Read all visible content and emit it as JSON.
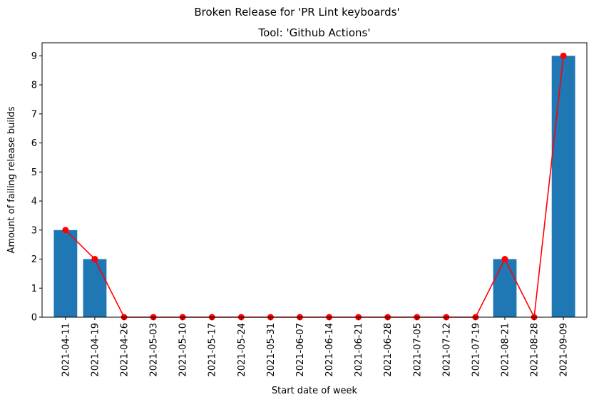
{
  "chart_data": {
    "type": "bar",
    "suptitle": "Broken Release for 'PR Lint keyboards'",
    "title": "Tool: 'Github Actions'",
    "xlabel": "Start date of week",
    "ylabel": "Amount of failing release builds",
    "categories": [
      "2021-04-11",
      "2021-04-19",
      "2021-04-26",
      "2021-05-03",
      "2021-05-10",
      "2021-05-17",
      "2021-05-24",
      "2021-05-31",
      "2021-06-07",
      "2021-06-14",
      "2021-06-21",
      "2021-06-28",
      "2021-07-05",
      "2021-07-12",
      "2021-07-19",
      "2021-08-21",
      "2021-08-28",
      "2021-09-09"
    ],
    "series": [
      {
        "type": "bar",
        "values": [
          3,
          2,
          0,
          0,
          0,
          0,
          0,
          0,
          0,
          0,
          0,
          0,
          0,
          0,
          0,
          2,
          0,
          9
        ]
      },
      {
        "type": "line",
        "values": [
          3,
          2,
          0,
          0,
          0,
          0,
          0,
          0,
          0,
          0,
          0,
          0,
          0,
          0,
          0,
          2,
          0,
          9
        ]
      }
    ],
    "ylim": [
      0,
      9.45
    ],
    "yticks": [
      0,
      1,
      2,
      3,
      4,
      5,
      6,
      7,
      8,
      9
    ],
    "grid": false,
    "colors": {
      "bar": "#1f77b4",
      "line": "#ff0000"
    }
  }
}
